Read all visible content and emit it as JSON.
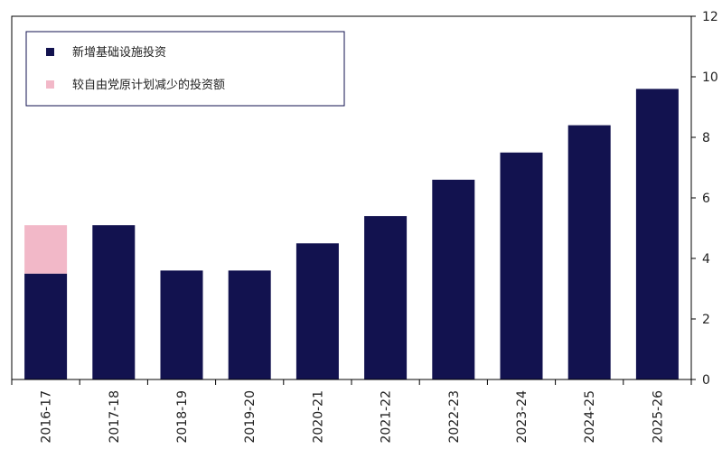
{
  "chart_data": {
    "type": "bar",
    "stacked": true,
    "categories": [
      "2016-17",
      "2017-18",
      "2018-19",
      "2019-20",
      "2020-21",
      "2021-22",
      "2022-23",
      "2023-24",
      "2024-25",
      "2025-26"
    ],
    "series": [
      {
        "name": "新增基础设施投资",
        "color": "#12124f",
        "values": [
          3.5,
          5.1,
          3.6,
          3.6,
          4.5,
          5.4,
          6.6,
          7.5,
          8.4,
          9.6
        ]
      },
      {
        "name": "较自由党原计划减少的投资额",
        "color": "#f2b8c8",
        "values": [
          1.6,
          0,
          0,
          0,
          0,
          0,
          0,
          0,
          0,
          0
        ]
      }
    ],
    "ylim": [
      0,
      12
    ],
    "yticks": [
      0,
      2,
      4,
      6,
      8,
      10,
      12
    ],
    "y_axis_position": "right",
    "legend_position": "top-left",
    "grid": false
  }
}
